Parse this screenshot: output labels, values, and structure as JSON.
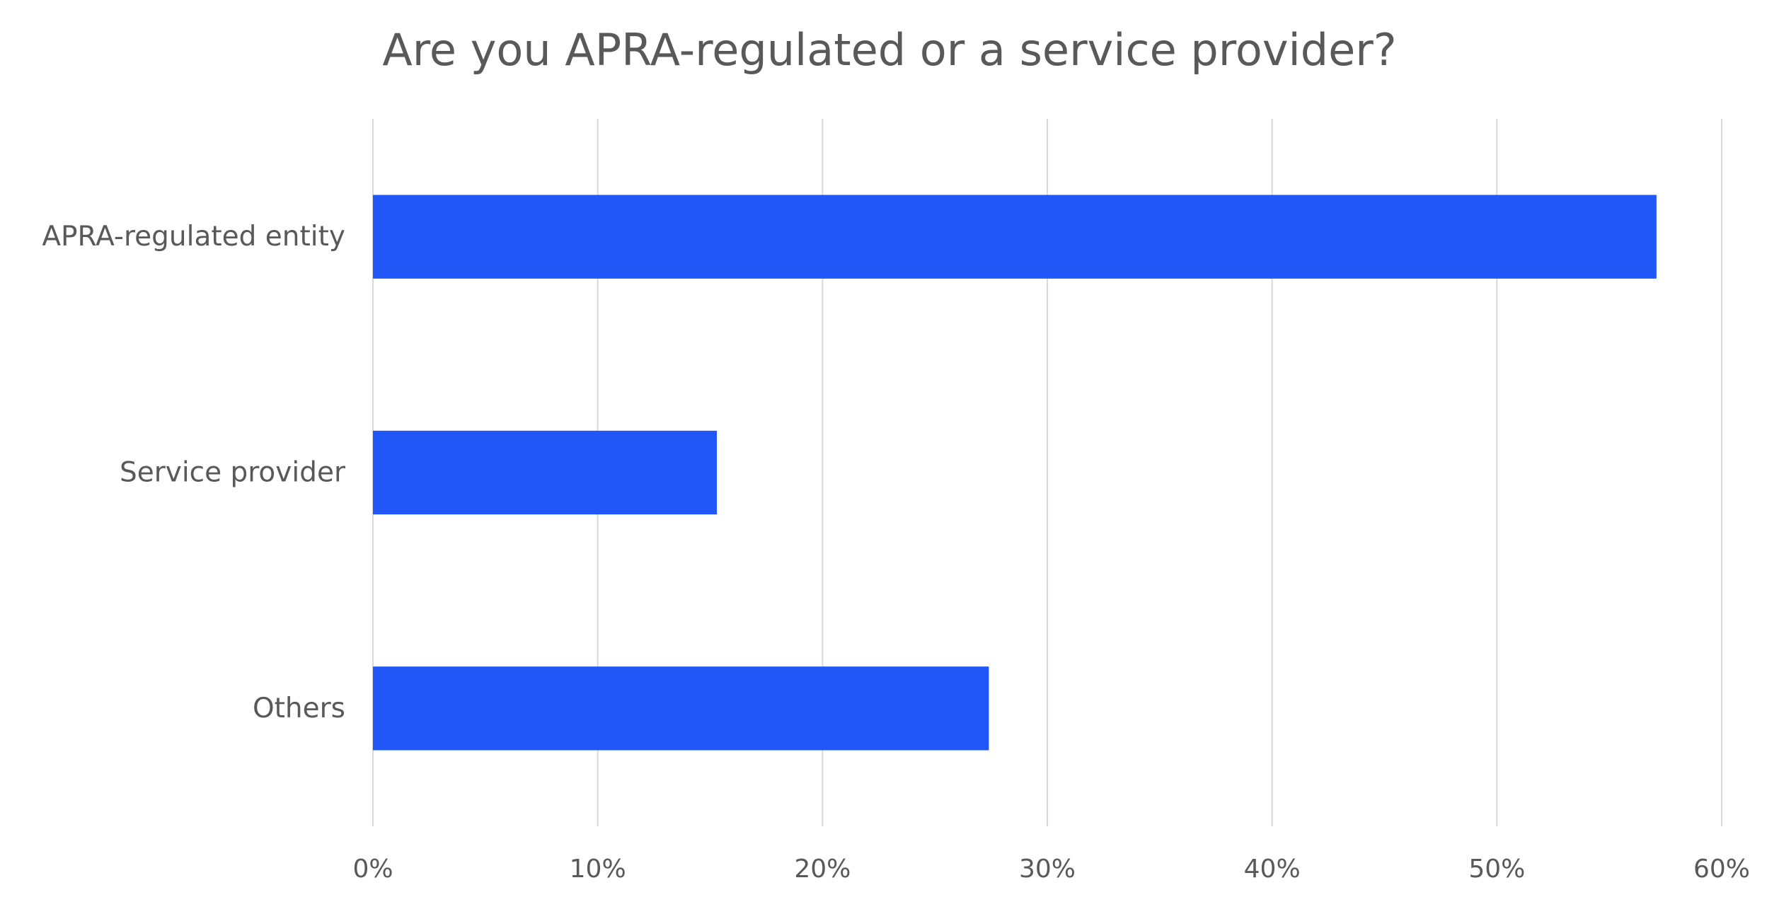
{
  "chart_data": {
    "type": "bar",
    "orientation": "horizontal",
    "title": "Are you APRA-regulated or a service provider?",
    "xlabel": "",
    "ylabel": "",
    "categories": [
      "APRA-regulated entity",
      "Service provider",
      "Others"
    ],
    "values": [
      57.1,
      15.3,
      27.4
    ],
    "xlim": [
      0,
      60
    ],
    "ticks": [
      0,
      10,
      20,
      30,
      40,
      50,
      60
    ],
    "tick_labels": [
      "0%",
      "10%",
      "20%",
      "30%",
      "40%",
      "50%",
      "60%"
    ],
    "grid": true,
    "legend": "none",
    "bar_color": "#2157f7"
  }
}
